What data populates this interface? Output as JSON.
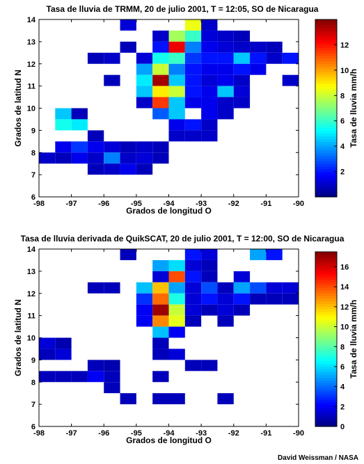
{
  "credit": "David Weissman / NASA",
  "chart_data": [
    {
      "type": "heatmap",
      "title": "Tasa de lluvia de TRMM, 20 de julio 2001, T = 12:05, SO de Nicaragua",
      "xlabel": "Grados de longitud O",
      "ylabel": "Grados de latitud N",
      "colorbar_label": "Tasa de lluvia mm/h",
      "xlim": [
        -98,
        -90
      ],
      "ylim": [
        6,
        14
      ],
      "x_ticks": [
        -98,
        -97,
        -96,
        -95,
        -94,
        -93,
        -92,
        -91,
        -90
      ],
      "y_ticks": [
        6,
        7,
        8,
        9,
        10,
        11,
        12,
        13,
        14
      ],
      "colorbar_range": [
        0,
        14
      ],
      "colorbar_ticks": [
        2,
        4,
        6,
        8,
        10,
        12
      ],
      "colormap": "jet",
      "cell_size_deg": 0.5,
      "grid": false,
      "cells": [
        {
          "lon": -95.25,
          "lat": 13.75,
          "value": 1.2
        },
        {
          "lon": -93.25,
          "lat": 13.75,
          "value": 8.5
        },
        {
          "lon": -92.75,
          "lat": 13.75,
          "value": 1.0
        },
        {
          "lon": -94.25,
          "lat": 13.25,
          "value": 1.0
        },
        {
          "lon": -93.75,
          "lat": 13.25,
          "value": 7.5
        },
        {
          "lon": -93.25,
          "lat": 13.25,
          "value": 6.0
        },
        {
          "lon": -92.75,
          "lat": 13.25,
          "value": 1.2
        },
        {
          "lon": -92.25,
          "lat": 13.25,
          "value": 1.0
        },
        {
          "lon": -91.75,
          "lat": 13.25,
          "value": 0.8
        },
        {
          "lon": -95.25,
          "lat": 12.75,
          "value": 0.8
        },
        {
          "lon": -94.25,
          "lat": 12.75,
          "value": 2.0
        },
        {
          "lon": -93.75,
          "lat": 12.75,
          "value": 12.5
        },
        {
          "lon": -93.25,
          "lat": 12.75,
          "value": 3.5
        },
        {
          "lon": -92.75,
          "lat": 12.75,
          "value": 1.5
        },
        {
          "lon": -92.25,
          "lat": 12.75,
          "value": 1.2
        },
        {
          "lon": -91.75,
          "lat": 12.75,
          "value": 1.0
        },
        {
          "lon": -91.25,
          "lat": 12.75,
          "value": 1.0
        },
        {
          "lon": -90.75,
          "lat": 12.75,
          "value": 0.8
        },
        {
          "lon": -96.25,
          "lat": 12.25,
          "value": 0.8
        },
        {
          "lon": -95.75,
          "lat": 12.25,
          "value": 1.0
        },
        {
          "lon": -94.75,
          "lat": 12.25,
          "value": 1.2
        },
        {
          "lon": -94.25,
          "lat": 12.25,
          "value": 5.5
        },
        {
          "lon": -93.75,
          "lat": 12.25,
          "value": 6.0
        },
        {
          "lon": -93.25,
          "lat": 12.25,
          "value": 2.5
        },
        {
          "lon": -92.75,
          "lat": 12.25,
          "value": 2.0
        },
        {
          "lon": -92.25,
          "lat": 12.25,
          "value": 2.0
        },
        {
          "lon": -91.75,
          "lat": 12.25,
          "value": 4.5
        },
        {
          "lon": -91.25,
          "lat": 12.25,
          "value": 2.0
        },
        {
          "lon": -90.75,
          "lat": 12.25,
          "value": 1.0
        },
        {
          "lon": -90.25,
          "lat": 12.25,
          "value": 2.0
        },
        {
          "lon": -94.75,
          "lat": 11.75,
          "value": 4.0
        },
        {
          "lon": -94.25,
          "lat": 11.75,
          "value": 8.0
        },
        {
          "lon": -93.75,
          "lat": 11.75,
          "value": 3.5
        },
        {
          "lon": -93.25,
          "lat": 11.75,
          "value": 2.0
        },
        {
          "lon": -92.75,
          "lat": 11.75,
          "value": 1.5
        },
        {
          "lon": -92.25,
          "lat": 11.75,
          "value": 1.5
        },
        {
          "lon": -91.75,
          "lat": 11.75,
          "value": 2.0
        },
        {
          "lon": -91.25,
          "lat": 11.75,
          "value": 1.5
        },
        {
          "lon": -95.75,
          "lat": 11.25,
          "value": 0.8
        },
        {
          "lon": -94.75,
          "lat": 11.25,
          "value": 5.0
        },
        {
          "lon": -94.25,
          "lat": 11.25,
          "value": 13.5
        },
        {
          "lon": -93.75,
          "lat": 11.25,
          "value": 4.5
        },
        {
          "lon": -93.25,
          "lat": 11.25,
          "value": 2.0
        },
        {
          "lon": -92.75,
          "lat": 11.25,
          "value": 1.2
        },
        {
          "lon": -92.25,
          "lat": 11.25,
          "value": 1.5
        },
        {
          "lon": -91.75,
          "lat": 11.25,
          "value": 1.0
        },
        {
          "lon": -90.25,
          "lat": 11.25,
          "value": 1.0
        },
        {
          "lon": -94.75,
          "lat": 10.75,
          "value": 4.5
        },
        {
          "lon": -94.25,
          "lat": 10.75,
          "value": 9.0
        },
        {
          "lon": -93.75,
          "lat": 10.75,
          "value": 8.0
        },
        {
          "lon": -93.25,
          "lat": 10.75,
          "value": 2.0
        },
        {
          "lon": -92.75,
          "lat": 10.75,
          "value": 1.5
        },
        {
          "lon": -92.25,
          "lat": 10.75,
          "value": 4.5
        },
        {
          "lon": -91.75,
          "lat": 10.75,
          "value": 1.2
        },
        {
          "lon": -94.75,
          "lat": 10.25,
          "value": 1.0
        },
        {
          "lon": -94.25,
          "lat": 10.25,
          "value": 11.5
        },
        {
          "lon": -93.75,
          "lat": 10.25,
          "value": 4.5
        },
        {
          "lon": -93.25,
          "lat": 10.25,
          "value": 1.5
        },
        {
          "lon": -92.75,
          "lat": 10.25,
          "value": 1.5
        },
        {
          "lon": -92.25,
          "lat": 10.25,
          "value": 1.0
        },
        {
          "lon": -91.75,
          "lat": 10.25,
          "value": 1.0
        },
        {
          "lon": -97.25,
          "lat": 9.75,
          "value": 4.5
        },
        {
          "lon": -96.75,
          "lat": 9.75,
          "value": 0.8
        },
        {
          "lon": -94.25,
          "lat": 9.75,
          "value": 3.0
        },
        {
          "lon": -93.75,
          "lat": 9.75,
          "value": 4.5
        },
        {
          "lon": -92.75,
          "lat": 9.75,
          "value": 1.5
        },
        {
          "lon": -92.25,
          "lat": 9.75,
          "value": 1.0
        },
        {
          "lon": -97.25,
          "lat": 9.25,
          "value": 5.5
        },
        {
          "lon": -96.75,
          "lat": 9.25,
          "value": 5.0
        },
        {
          "lon": -93.75,
          "lat": 9.25,
          "value": 1.5
        },
        {
          "lon": -93.25,
          "lat": 9.25,
          "value": 2.0
        },
        {
          "lon": -92.75,
          "lat": 9.25,
          "value": 1.0
        },
        {
          "lon": -96.25,
          "lat": 8.75,
          "value": 0.8
        },
        {
          "lon": -93.75,
          "lat": 8.75,
          "value": 1.0
        },
        {
          "lon": -93.25,
          "lat": 8.75,
          "value": 1.0
        },
        {
          "lon": -92.75,
          "lat": 8.75,
          "value": 1.0
        },
        {
          "lon": -96.25,
          "lat": 8.25,
          "value": 1.5
        },
        {
          "lon": -95.75,
          "lat": 8.25,
          "value": 1.2
        },
        {
          "lon": -97.25,
          "lat": 8.25,
          "value": 1.5
        },
        {
          "lon": -96.75,
          "lat": 8.25,
          "value": 2.5
        },
        {
          "lon": -95.25,
          "lat": 8.25,
          "value": 0.8
        },
        {
          "lon": -94.75,
          "lat": 8.25,
          "value": 1.0
        },
        {
          "lon": -94.25,
          "lat": 8.25,
          "value": 0.8
        },
        {
          "lon": -97.75,
          "lat": 7.75,
          "value": 1.0
        },
        {
          "lon": -97.25,
          "lat": 7.75,
          "value": 0.8
        },
        {
          "lon": -96.75,
          "lat": 7.75,
          "value": 1.5
        },
        {
          "lon": -96.25,
          "lat": 7.75,
          "value": 1.0
        },
        {
          "lon": -95.75,
          "lat": 7.75,
          "value": 3.5
        },
        {
          "lon": -95.25,
          "lat": 7.75,
          "value": 1.0
        },
        {
          "lon": -94.75,
          "lat": 7.75,
          "value": 1.2
        },
        {
          "lon": -94.25,
          "lat": 7.75,
          "value": 0.8
        },
        {
          "lon": -98.25,
          "lat": 7.75,
          "value": 0.8
        },
        {
          "lon": -96.25,
          "lat": 7.25,
          "value": 0.8
        },
        {
          "lon": -95.75,
          "lat": 7.25,
          "value": 1.0
        },
        {
          "lon": -95.25,
          "lat": 7.25,
          "value": 1.5
        },
        {
          "lon": -94.75,
          "lat": 7.25,
          "value": 0.8
        }
      ]
    },
    {
      "type": "heatmap",
      "title": "Tasa de lluvia derivada de QuikSCAT, 20 de julio 2001, T = 12:00, SO de Nicaragua",
      "xlabel": "Grados de longitud O",
      "ylabel": "Grados de latitud N",
      "colorbar_label": "Tasa de lluvia mm/h",
      "xlim": [
        -98,
        -90
      ],
      "ylim": [
        6,
        14
      ],
      "x_ticks": [
        -98,
        -97,
        -96,
        -95,
        -94,
        -93,
        -92,
        -91,
        -90
      ],
      "y_ticks": [
        6,
        7,
        8,
        9,
        10,
        11,
        12,
        13,
        14
      ],
      "colorbar_range": [
        0,
        17.5
      ],
      "colorbar_ticks": [
        0,
        2,
        4,
        6,
        8,
        10,
        12,
        14,
        16
      ],
      "colormap": "jet",
      "cell_size_deg": 0.5,
      "grid": false,
      "cells": [
        {
          "lon": -95.25,
          "lat": 13.75,
          "value": 1.0
        },
        {
          "lon": -93.25,
          "lat": 13.75,
          "value": 2.5
        },
        {
          "lon": -92.75,
          "lat": 13.75,
          "value": 1.5
        },
        {
          "lon": -91.25,
          "lat": 13.75,
          "value": 5.0
        },
        {
          "lon": -90.75,
          "lat": 13.75,
          "value": 2.5
        },
        {
          "lon": -94.25,
          "lat": 13.25,
          "value": 5.0
        },
        {
          "lon": -93.75,
          "lat": 13.25,
          "value": 6.0
        },
        {
          "lon": -93.25,
          "lat": 13.25,
          "value": 1.5
        },
        {
          "lon": -92.75,
          "lat": 13.25,
          "value": 1.0
        },
        {
          "lon": -94.25,
          "lat": 12.75,
          "value": 1.5
        },
        {
          "lon": -93.75,
          "lat": 12.75,
          "value": 14.0
        },
        {
          "lon": -93.25,
          "lat": 12.75,
          "value": 2.5
        },
        {
          "lon": -92.75,
          "lat": 12.75,
          "value": 1.0
        },
        {
          "lon": -91.75,
          "lat": 12.75,
          "value": 1.5
        },
        {
          "lon": -96.25,
          "lat": 12.25,
          "value": 1.0
        },
        {
          "lon": -95.75,
          "lat": 12.25,
          "value": 1.0
        },
        {
          "lon": -94.75,
          "lat": 12.25,
          "value": 5.5
        },
        {
          "lon": -94.25,
          "lat": 12.25,
          "value": 12.0
        },
        {
          "lon": -93.75,
          "lat": 12.25,
          "value": 5.0
        },
        {
          "lon": -93.25,
          "lat": 12.25,
          "value": 1.5
        },
        {
          "lon": -92.75,
          "lat": 12.25,
          "value": 3.5
        },
        {
          "lon": -92.25,
          "lat": 12.25,
          "value": 1.0
        },
        {
          "lon": -91.75,
          "lat": 12.25,
          "value": 5.0
        },
        {
          "lon": -91.25,
          "lat": 12.25,
          "value": 3.5
        },
        {
          "lon": -90.75,
          "lat": 12.25,
          "value": 1.5
        },
        {
          "lon": -90.25,
          "lat": 12.25,
          "value": 1.5
        },
        {
          "lon": -94.75,
          "lat": 11.75,
          "value": 3.0
        },
        {
          "lon": -94.25,
          "lat": 11.75,
          "value": 13.5
        },
        {
          "lon": -93.75,
          "lat": 11.75,
          "value": 7.0
        },
        {
          "lon": -93.25,
          "lat": 11.75,
          "value": 1.5
        },
        {
          "lon": -92.75,
          "lat": 11.75,
          "value": 2.5
        },
        {
          "lon": -92.25,
          "lat": 11.75,
          "value": 1.5
        },
        {
          "lon": -91.75,
          "lat": 11.75,
          "value": 2.5
        },
        {
          "lon": -91.25,
          "lat": 11.75,
          "value": 1.0
        },
        {
          "lon": -90.75,
          "lat": 11.75,
          "value": 1.0
        },
        {
          "lon": -90.25,
          "lat": 11.75,
          "value": 1.0
        },
        {
          "lon": -94.75,
          "lat": 11.25,
          "value": 2.0
        },
        {
          "lon": -94.25,
          "lat": 11.25,
          "value": 17.0
        },
        {
          "lon": -93.75,
          "lat": 11.25,
          "value": 10.0
        },
        {
          "lon": -93.25,
          "lat": 11.25,
          "value": 1.5
        },
        {
          "lon": -92.75,
          "lat": 11.25,
          "value": 1.0
        },
        {
          "lon": -92.25,
          "lat": 11.25,
          "value": 1.5
        },
        {
          "lon": -91.75,
          "lat": 11.25,
          "value": 1.0
        },
        {
          "lon": -94.75,
          "lat": 10.75,
          "value": 2.0
        },
        {
          "lon": -94.25,
          "lat": 10.75,
          "value": 13.0
        },
        {
          "lon": -93.75,
          "lat": 10.75,
          "value": 10.5
        },
        {
          "lon": -93.25,
          "lat": 10.75,
          "value": 1.0
        },
        {
          "lon": -92.25,
          "lat": 10.75,
          "value": 1.0
        },
        {
          "lon": -94.25,
          "lat": 10.25,
          "value": 5.5
        },
        {
          "lon": -93.75,
          "lat": 10.25,
          "value": 2.0
        },
        {
          "lon": -97.75,
          "lat": 9.75,
          "value": 1.5
        },
        {
          "lon": -97.25,
          "lat": 9.75,
          "value": 0.8
        },
        {
          "lon": -94.25,
          "lat": 9.75,
          "value": 1.0
        },
        {
          "lon": -97.75,
          "lat": 9.25,
          "value": 1.0
        },
        {
          "lon": -97.25,
          "lat": 9.25,
          "value": 1.5
        },
        {
          "lon": -94.25,
          "lat": 9.25,
          "value": 1.0
        },
        {
          "lon": -93.75,
          "lat": 9.25,
          "value": 1.5
        },
        {
          "lon": -93.25,
          "lat": 8.75,
          "value": 1.0
        },
        {
          "lon": -92.75,
          "lat": 8.75,
          "value": 1.0
        },
        {
          "lon": -96.25,
          "lat": 8.75,
          "value": 1.0
        },
        {
          "lon": -95.75,
          "lat": 8.75,
          "value": 0.8
        },
        {
          "lon": -97.75,
          "lat": 8.25,
          "value": 1.0
        },
        {
          "lon": -97.25,
          "lat": 8.25,
          "value": 1.0
        },
        {
          "lon": -96.75,
          "lat": 8.25,
          "value": 1.0
        },
        {
          "lon": -96.25,
          "lat": 8.25,
          "value": 2.0
        },
        {
          "lon": -95.75,
          "lat": 8.25,
          "value": 1.0
        },
        {
          "lon": -94.25,
          "lat": 8.25,
          "value": 1.0
        },
        {
          "lon": -95.75,
          "lat": 7.75,
          "value": 1.0
        },
        {
          "lon": -95.25,
          "lat": 7.25,
          "value": 1.0
        },
        {
          "lon": -94.25,
          "lat": 7.25,
          "value": 1.0
        },
        {
          "lon": -93.75,
          "lat": 7.25,
          "value": 1.0
        },
        {
          "lon": -92.25,
          "lat": 7.25,
          "value": 1.0
        }
      ]
    }
  ]
}
